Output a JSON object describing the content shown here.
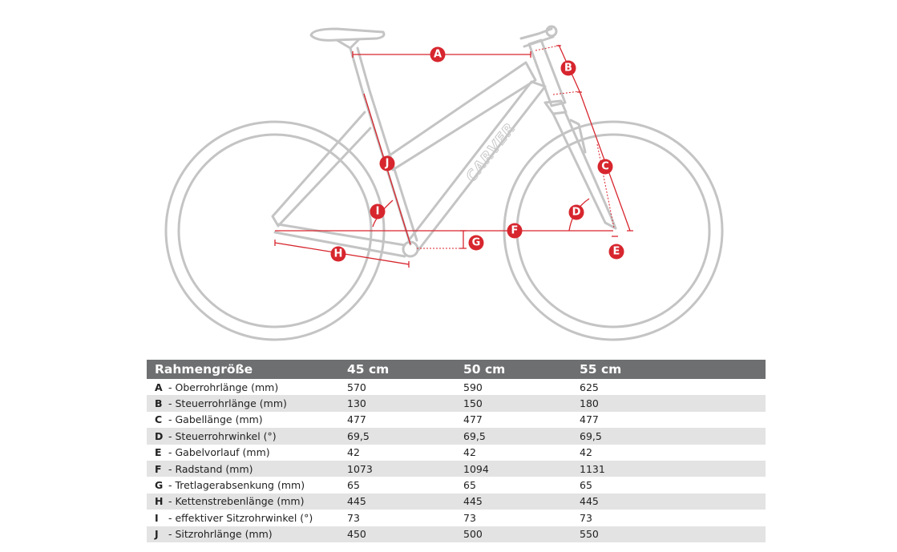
{
  "diagram": {
    "brand_logo": "CARVER",
    "accent_color": "#d7262e",
    "markers": [
      "A",
      "B",
      "C",
      "D",
      "E",
      "F",
      "G",
      "H",
      "I",
      "J"
    ]
  },
  "table": {
    "header": [
      "Rahmengröße",
      "45 cm",
      "50 cm",
      "55 cm"
    ],
    "rows": [
      {
        "key": "A",
        "label": "- Oberrohrlänge (mm)",
        "values": [
          "570",
          "590",
          "625"
        ]
      },
      {
        "key": "B",
        "label": "- Steuerrohrlänge (mm)",
        "values": [
          "130",
          "150",
          "180"
        ]
      },
      {
        "key": "C",
        "label": "- Gabellänge (mm)",
        "values": [
          "477",
          "477",
          "477"
        ]
      },
      {
        "key": "D",
        "label": "- Steuerrohrwinkel (°)",
        "values": [
          "69,5",
          "69,5",
          "69,5"
        ]
      },
      {
        "key": "E",
        "label": "- Gabelvorlauf (mm)",
        "values": [
          "42",
          "42",
          "42"
        ]
      },
      {
        "key": "F",
        "label": "- Radstand (mm)",
        "values": [
          "1073",
          "1094",
          "1131"
        ]
      },
      {
        "key": "G",
        "label": "- Tretlagerabsenkung (mm)",
        "values": [
          "65",
          "65",
          "65"
        ]
      },
      {
        "key": "H",
        "label": "- Kettenstrebenlänge (mm)",
        "values": [
          "445",
          "445",
          "445"
        ]
      },
      {
        "key": "I",
        "label": "- effektiver Sitzrohrwinkel (°)",
        "values": [
          "73",
          "73",
          "73"
        ]
      },
      {
        "key": "J",
        "label": "- Sitzrohrlänge (mm)",
        "values": [
          "450",
          "500",
          "550"
        ]
      }
    ]
  }
}
